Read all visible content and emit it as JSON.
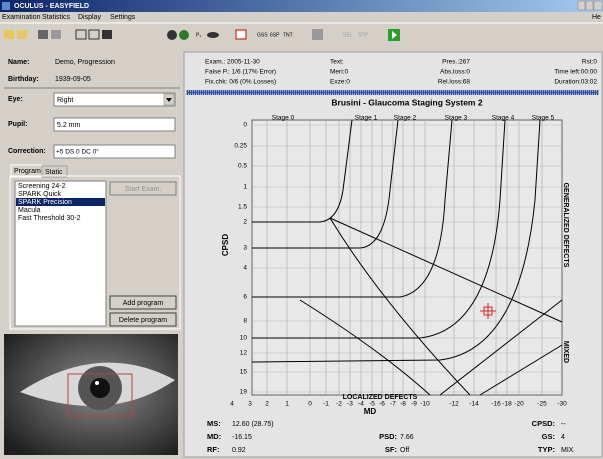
{
  "window": {
    "title": "OCULUS - EASYFIELD",
    "help": "He"
  },
  "menu": [
    "Examination",
    "Statistics",
    "Display",
    "Settings"
  ],
  "toolbar": {
    "labels": [
      "P₂",
      "GSS",
      "6SP",
      "TNT",
      "SEL",
      "STP"
    ]
  },
  "patient": {
    "name_label": "Name:",
    "name": "Demo, Progression",
    "birthday_label": "Birthday:",
    "birthday": "1939-09-05",
    "eye_label": "Eye:",
    "eye": "Right",
    "pupil_label": "Pupil:",
    "pupil": "5.2 mm",
    "correction_label": "Correction:",
    "correction": "+5 DS 0 DC 0°"
  },
  "tabs": [
    "Program",
    "Static"
  ],
  "programs": {
    "items": [
      "Screening 24-2",
      "SPARK Quick",
      "SPARK Precision",
      "Macula",
      "Fast Threshold 30-2"
    ],
    "selected": 2
  },
  "buttons": {
    "start": "Start Exam.",
    "add": "Add program",
    "delete": "Delete program"
  },
  "exam_info": {
    "left": [
      "Exam.: 2005-11-30",
      "False P.: 1/6 (17% Error)",
      "Fix.chk: 0/6 (0% Losses)"
    ],
    "middle": [
      "Text:",
      "Meri:0",
      "Exze:0"
    ],
    "right": [
      "Pres.:267",
      "Abs.loss:0",
      "Rel.loss:68"
    ],
    "far_right": [
      "Rst:0",
      "Time left:00:00",
      "Duration:03:02"
    ]
  },
  "chart": {
    "title": "Brusini - Glaucoma Staging System 2",
    "stages": [
      "Stage 0",
      "Stage 1",
      "Stage 2",
      "Stage 3",
      "Stage 4",
      "Stage 5"
    ],
    "y_label": "CPSD",
    "x_label": "MD",
    "yticks": [
      "0",
      "0.25",
      "0.5",
      "1",
      "1.5",
      "2",
      "3",
      "4",
      "6",
      "8",
      "10",
      "12",
      "15",
      "19"
    ],
    "xticks": [
      "4",
      "3",
      "2",
      "1",
      "0",
      "-1",
      "-2",
      "-3",
      "-4",
      "-5",
      "-6",
      "-7",
      "-8",
      "-9",
      "-10",
      "-12",
      "-14",
      "-16",
      "-18",
      "-20",
      "-25",
      "-30"
    ],
    "right_labels": [
      "GENERALIZED DEFECTS",
      "MIXED"
    ],
    "bottom_label": "LOCALIZED DEFECTS"
  },
  "results": {
    "left": [
      [
        "MS:",
        "12.60 (28.75)"
      ],
      [
        "MD:",
        "-16.15"
      ],
      [
        "RF:",
        "0.92"
      ]
    ],
    "middle": [
      [
        "PSD:",
        "7.66"
      ],
      [
        "SF:",
        "Off"
      ]
    ],
    "right": [
      [
        "CPSD:",
        "--"
      ],
      [
        "GS:",
        "4"
      ],
      [
        "TYP:",
        "MIX"
      ]
    ]
  }
}
